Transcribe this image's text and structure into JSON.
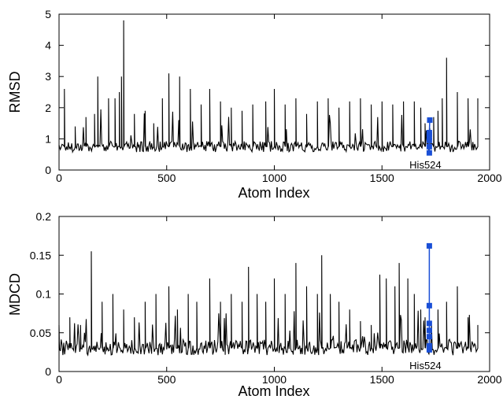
{
  "chart_data": [
    {
      "type": "line",
      "title": "",
      "xlabel": "Atom Index",
      "ylabel": "RMSD",
      "xlim": [
        0,
        2000
      ],
      "ylim": [
        0,
        5
      ],
      "xticks": [
        "0",
        "500",
        "1000",
        "1500",
        "2000"
      ],
      "yticks": [
        "0",
        "1",
        "2",
        "3",
        "4",
        "5"
      ],
      "grid": false,
      "legend": "none",
      "baseline": 0.75,
      "series": [
        {
          "color": "#000000",
          "x": [
            0,
            25,
            75,
            125,
            165,
            180,
            230,
            260,
            280,
            290,
            300,
            350,
            400,
            440,
            480,
            510,
            560,
            610,
            660,
            700,
            750,
            800,
            850,
            900,
            960,
            1000,
            1050,
            1100,
            1150,
            1200,
            1250,
            1300,
            1350,
            1400,
            1450,
            1500,
            1550,
            1600,
            1650,
            1680,
            1700,
            1740,
            1760,
            1780,
            1800,
            1850,
            1900,
            1945
          ],
          "values": [
            0.8,
            2.6,
            1.4,
            1.7,
            1.8,
            3.0,
            2.3,
            2.3,
            2.5,
            3.0,
            4.8,
            1.8,
            1.9,
            1.5,
            2.3,
            3.1,
            3.0,
            2.6,
            2.1,
            2.6,
            2.2,
            2.0,
            1.9,
            2.1,
            2.2,
            2.6,
            2.1,
            2.3,
            1.8,
            2.2,
            2.3,
            2.0,
            2.2,
            2.3,
            2.1,
            2.2,
            2.1,
            2.2,
            2.2,
            2.0,
            1.5,
            1.7,
            1.9,
            2.3,
            3.6,
            2.5,
            2.3,
            2.3
          ]
        },
        {
          "name": "His524",
          "color": "#1a4fd6",
          "x": [
            1720,
            1720,
            1720,
            1720,
            1720,
            1720,
            1722
          ],
          "values": [
            0.55,
            0.75,
            0.95,
            1.05,
            1.15,
            1.2,
            1.6
          ]
        }
      ],
      "annotations": [
        {
          "text": "His524",
          "x": 1720,
          "y": 0.05
        }
      ]
    },
    {
      "type": "line",
      "title": "",
      "xlabel": "Atom Index",
      "ylabel": "MDCD",
      "xlim": [
        0,
        2000
      ],
      "ylim": [
        0,
        0.2
      ],
      "xticks": [
        "0",
        "500",
        "1000",
        "1500",
        "2000"
      ],
      "yticks": [
        "0",
        "0.05",
        "0.1",
        "0.15",
        "0.2"
      ],
      "grid": false,
      "legend": "none",
      "baseline": 0.03,
      "series": [
        {
          "color": "#000000",
          "x": [
            0,
            50,
            100,
            150,
            200,
            250,
            300,
            350,
            400,
            450,
            510,
            550,
            600,
            640,
            700,
            750,
            800,
            850,
            880,
            920,
            960,
            1000,
            1050,
            1100,
            1150,
            1200,
            1220,
            1260,
            1300,
            1350,
            1400,
            1450,
            1490,
            1520,
            1560,
            1580,
            1620,
            1650,
            1680,
            1700,
            1760,
            1800,
            1850,
            1900,
            1945
          ],
          "values": [
            0.06,
            0.07,
            0.06,
            0.155,
            0.09,
            0.1,
            0.08,
            0.07,
            0.09,
            0.1,
            0.11,
            0.08,
            0.1,
            0.09,
            0.12,
            0.09,
            0.1,
            0.09,
            0.135,
            0.1,
            0.09,
            0.12,
            0.1,
            0.14,
            0.11,
            0.1,
            0.15,
            0.1,
            0.09,
            0.08,
            0.065,
            0.06,
            0.125,
            0.12,
            0.11,
            0.14,
            0.12,
            0.1,
            0.08,
            0.07,
            0.08,
            0.09,
            0.11,
            0.07,
            0.06
          ]
        },
        {
          "name": "His524",
          "color": "#1a4fd6",
          "x": [
            1720,
            1720,
            1720,
            1720,
            1720,
            1720,
            1720
          ],
          "values": [
            0.028,
            0.033,
            0.045,
            0.053,
            0.062,
            0.085,
            0.162
          ]
        }
      ],
      "annotations": [
        {
          "text": "His524",
          "x": 1720,
          "y": 0.003
        }
      ]
    }
  ]
}
